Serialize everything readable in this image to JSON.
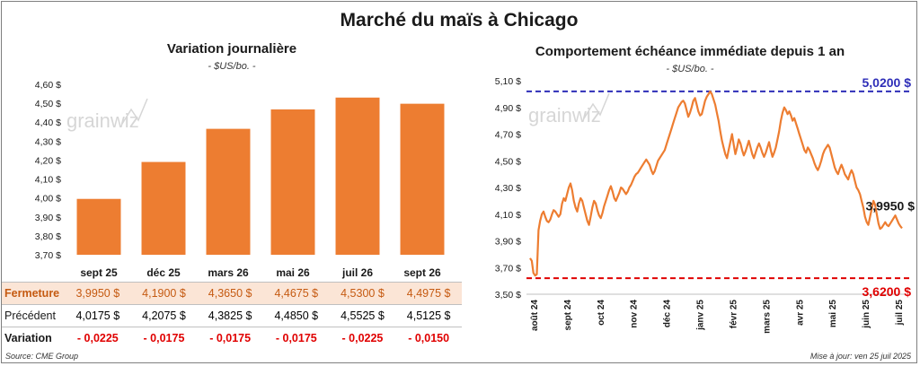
{
  "main_title": "Marché du maïs à Chicago",
  "left_title": "Variation journalière",
  "left_unit": "- $US/bo. -",
  "right_title": "Comportement échéance immédiate depuis 1 an",
  "right_unit": "- $US/bo. -",
  "watermark": "grainwiz",
  "table": {
    "rows": [
      {
        "label": "Fermeture",
        "values": [
          "3,9950  $",
          "4,1900  $",
          "4,3650  $",
          "4,4675  $",
          "4,5300  $",
          "4,4975  $"
        ]
      },
      {
        "label": "Précédent",
        "values": [
          "4,0175  $",
          "4,2075  $",
          "4,3825  $",
          "4,4850  $",
          "4,5525  $",
          "4,5125  $"
        ]
      },
      {
        "label": "Variation",
        "values": [
          "- 0,0225",
          "- 0,0175",
          "- 0,0175",
          "- 0,0175",
          "- 0,0225",
          "- 0,0150"
        ]
      }
    ]
  },
  "source": "Source: CME Group",
  "updated": "Mise à jour: ven 25 juil 2025",
  "colors": {
    "bar": "#ed7d31",
    "line": "#ed7d31",
    "high_line": "#2e2eb8",
    "low_line": "#e00000",
    "negative": "#e00000"
  },
  "chart_data": [
    {
      "type": "bar",
      "title": "Variation journalière",
      "ylabel": "$US/bo.",
      "categories": [
        "sept 25",
        "déc 25",
        "mars 26",
        "mai 26",
        "juil 26",
        "sept 26"
      ],
      "values": [
        3.995,
        4.19,
        4.365,
        4.4675,
        4.53,
        4.4975
      ],
      "ylim": [
        3.7,
        4.6
      ],
      "yticks": [
        "3,70 $",
        "3,80 $",
        "3,90 $",
        "4,00 $",
        "4,10 $",
        "4,20 $",
        "4,30 $",
        "4,40 $",
        "4,50 $",
        "4,60 $"
      ],
      "grid": false
    },
    {
      "type": "line",
      "title": "Comportement échéance immédiate depuis 1 an",
      "ylabel": "$US/bo.",
      "ylim": [
        3.5,
        5.1
      ],
      "yticks": [
        "3,50 $",
        "3,70 $",
        "3,90 $",
        "4,10 $",
        "4,30 $",
        "4,50 $",
        "4,70 $",
        "4,90 $",
        "5,10 $"
      ],
      "xticks": [
        "août 24",
        "sept 24",
        "oct 24",
        "nov 24",
        "déc 24",
        "janv 25",
        "févr 25",
        "mars 25",
        "avr 25",
        "mai 25",
        "juin 25",
        "juil 25"
      ],
      "series": [
        {
          "values": [
            3.77,
            3.75,
            3.66,
            3.64,
            3.65,
            3.98,
            4.05,
            4.1,
            4.12,
            4.08,
            4.05,
            4.04,
            4.06,
            4.1,
            4.13,
            4.12,
            4.1,
            4.08,
            4.1,
            4.18,
            4.22,
            4.2,
            4.25,
            4.3,
            4.33,
            4.28,
            4.2,
            4.15,
            4.12,
            4.18,
            4.22,
            4.2,
            4.15,
            4.1,
            4.05,
            4.02,
            4.08,
            4.15,
            4.2,
            4.18,
            4.13,
            4.09,
            4.07,
            4.11,
            4.16,
            4.2,
            4.24,
            4.28,
            4.31,
            4.27,
            4.22,
            4.2,
            4.23,
            4.26,
            4.3,
            4.29,
            4.27,
            4.25,
            4.27,
            4.3,
            4.32,
            4.35,
            4.38,
            4.4,
            4.41,
            4.43,
            4.45,
            4.47,
            4.49,
            4.51,
            4.49,
            4.47,
            4.43,
            4.4,
            4.42,
            4.46,
            4.5,
            4.52,
            4.54,
            4.56,
            4.58,
            4.62,
            4.66,
            4.7,
            4.74,
            4.78,
            4.82,
            4.86,
            4.9,
            4.92,
            4.94,
            4.95,
            4.93,
            4.88,
            4.83,
            4.86,
            4.9,
            4.95,
            4.97,
            4.92,
            4.87,
            4.84,
            4.85,
            4.9,
            4.95,
            4.98,
            5.0,
            5.02,
            5.0,
            4.96,
            4.92,
            4.86,
            4.8,
            4.72,
            4.65,
            4.6,
            4.55,
            4.52,
            4.58,
            4.64,
            4.7,
            4.62,
            4.55,
            4.6,
            4.66,
            4.63,
            4.58,
            4.54,
            4.57,
            4.61,
            4.65,
            4.6,
            4.55,
            4.52,
            4.56,
            4.6,
            4.63,
            4.6,
            4.56,
            4.53,
            4.56,
            4.6,
            4.64,
            4.58,
            4.53,
            4.56,
            4.6,
            4.66,
            4.72,
            4.8,
            4.86,
            4.9,
            4.88,
            4.85,
            4.87,
            4.84,
            4.8,
            4.82,
            4.78,
            4.74,
            4.7,
            4.66,
            4.62,
            4.58,
            4.56,
            4.6,
            4.58,
            4.55,
            4.52,
            4.48,
            4.45,
            4.43,
            4.46,
            4.5,
            4.55,
            4.58,
            4.6,
            4.62,
            4.6,
            4.55,
            4.5,
            4.45,
            4.42,
            4.4,
            4.44,
            4.47,
            4.44,
            4.4,
            4.38,
            4.36,
            4.4,
            4.43,
            4.4,
            4.35,
            4.3,
            4.28,
            4.25,
            4.2,
            4.15,
            4.08,
            4.04,
            4.02,
            4.08,
            4.14,
            4.2,
            4.17,
            4.1,
            4.03,
            3.99,
            4.0,
            4.02,
            4.04,
            4.02,
            4.01,
            4.03,
            4.05,
            4.07,
            4.09,
            4.06,
            4.03,
            4.01,
            3.995
          ]
        }
      ],
      "annotations": [
        {
          "text": "5,0200 $",
          "value": 5.02
        },
        {
          "text": "3,6200 $",
          "value": 3.62
        },
        {
          "text": "3,9950 $",
          "value": 3.995
        }
      ],
      "grid": false
    }
  ]
}
